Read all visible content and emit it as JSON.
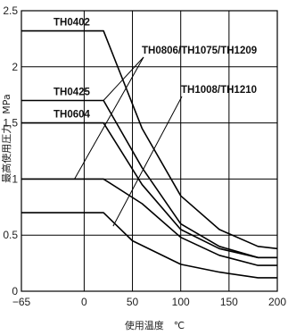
{
  "chart_data": {
    "type": "line",
    "title": "",
    "xlabel": "使用温度　℃",
    "ylabel": "最高使用圧力　MPa",
    "xlim": [
      -65,
      200
    ],
    "ylim": [
      0,
      2.5
    ],
    "x_ticks": [
      "−65",
      "0",
      "50",
      "100",
      "150",
      "200"
    ],
    "y_ticks": [
      "0",
      "0.5",
      "1",
      "1.5",
      "2",
      "2.5"
    ],
    "grid": true,
    "series": [
      {
        "name": "TH0402",
        "points": [
          [
            -65,
            2.32
          ],
          [
            20,
            2.32
          ],
          [
            60,
            1.45
          ],
          [
            100,
            0.85
          ],
          [
            140,
            0.55
          ],
          [
            180,
            0.4
          ],
          [
            200,
            0.38
          ]
        ]
      },
      {
        "name": "TH0425",
        "points": [
          [
            -65,
            1.7
          ],
          [
            20,
            1.7
          ],
          [
            60,
            1.1
          ],
          [
            100,
            0.6
          ],
          [
            140,
            0.4
          ],
          [
            180,
            0.3
          ],
          [
            200,
            0.3
          ]
        ]
      },
      {
        "name": "TH0604",
        "points": [
          [
            -65,
            1.5
          ],
          [
            20,
            1.5
          ],
          [
            60,
            0.95
          ],
          [
            100,
            0.55
          ],
          [
            140,
            0.38
          ],
          [
            180,
            0.3
          ],
          [
            200,
            0.3
          ]
        ]
      },
      {
        "name": "",
        "points": [
          [
            -65,
            1.0
          ],
          [
            20,
            1.0
          ],
          [
            60,
            0.78
          ],
          [
            100,
            0.48
          ],
          [
            140,
            0.32
          ],
          [
            180,
            0.23
          ],
          [
            200,
            0.23
          ]
        ]
      },
      {
        "name": "",
        "points": [
          [
            -65,
            0.7
          ],
          [
            20,
            0.7
          ],
          [
            50,
            0.45
          ],
          [
            100,
            0.24
          ],
          [
            140,
            0.17
          ],
          [
            180,
            0.12
          ],
          [
            200,
            0.12
          ]
        ]
      }
    ],
    "annotations": [
      {
        "text": "TH0806/TH1075/TH1209",
        "pointer_targets": [
          [
            -10,
            1.0
          ],
          [
            20,
            1.7
          ]
        ]
      },
      {
        "text": "TH1008/TH1210",
        "pointer_targets": [
          [
            30,
            0.58
          ]
        ]
      }
    ]
  }
}
